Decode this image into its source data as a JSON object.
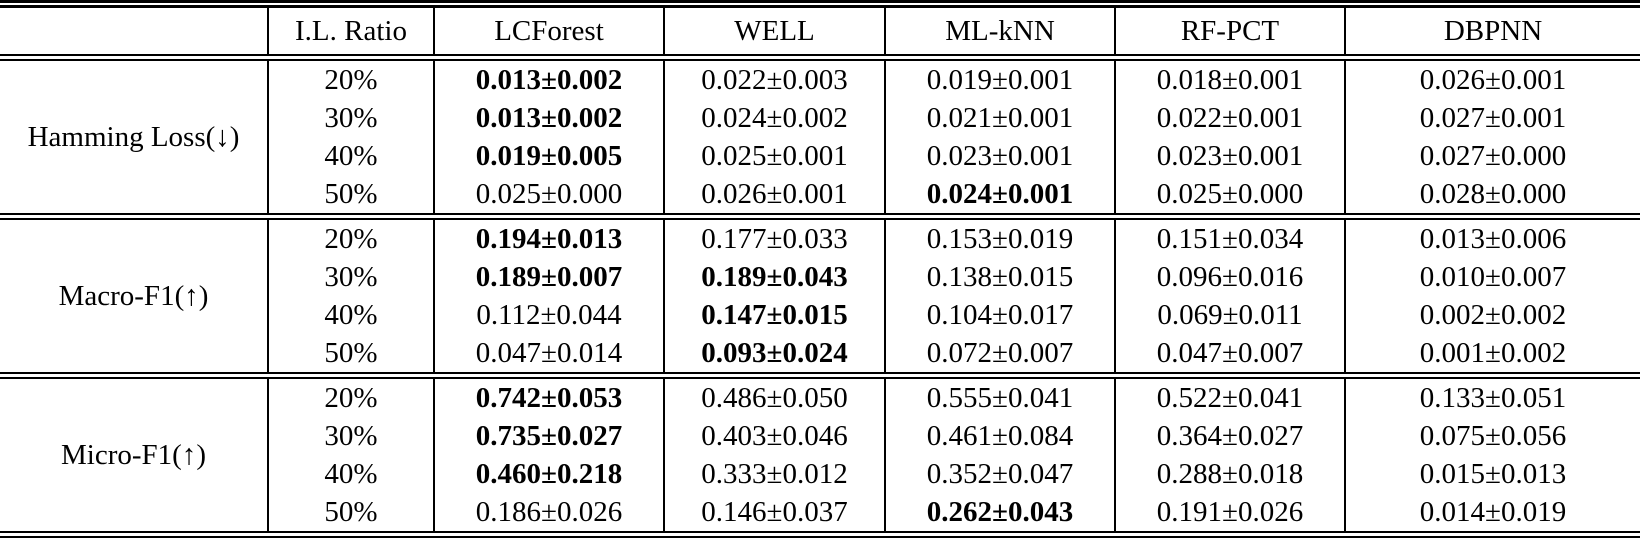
{
  "page": {
    "background": "#ffffff",
    "text_color": "#000000"
  },
  "table": {
    "header": [
      "",
      "I.L. Ratio",
      "LCForest",
      "WELL",
      "ML-kNN",
      "RF-PCT",
      "DBPNN"
    ],
    "groups": [
      {
        "metric": "Hamming Loss(↓)",
        "rows": [
          {
            "ratio": "20%",
            "values": [
              "0.013±0.002",
              "0.022±0.003",
              "0.019±0.001",
              "0.018±0.001",
              "0.026±0.001"
            ],
            "bold": [
              true,
              false,
              false,
              false,
              false
            ]
          },
          {
            "ratio": "30%",
            "values": [
              "0.013±0.002",
              "0.024±0.002",
              "0.021±0.001",
              "0.022±0.001",
              "0.027±0.001"
            ],
            "bold": [
              true,
              false,
              false,
              false,
              false
            ]
          },
          {
            "ratio": "40%",
            "values": [
              "0.019±0.005",
              "0.025±0.001",
              "0.023±0.001",
              "0.023±0.001",
              "0.027±0.000"
            ],
            "bold": [
              true,
              false,
              false,
              false,
              false
            ]
          },
          {
            "ratio": "50%",
            "values": [
              "0.025±0.000",
              "0.026±0.001",
              "0.024±0.001",
              "0.025±0.000",
              "0.028±0.000"
            ],
            "bold": [
              false,
              false,
              true,
              false,
              false
            ]
          }
        ]
      },
      {
        "metric": "Macro-F1(↑)",
        "rows": [
          {
            "ratio": "20%",
            "values": [
              "0.194±0.013",
              "0.177±0.033",
              "0.153±0.019",
              "0.151±0.034",
              "0.013±0.006"
            ],
            "bold": [
              true,
              false,
              false,
              false,
              false
            ]
          },
          {
            "ratio": "30%",
            "values": [
              "0.189±0.007",
              "0.189±0.043",
              "0.138±0.015",
              "0.096±0.016",
              "0.010±0.007"
            ],
            "bold": [
              true,
              true,
              false,
              false,
              false
            ]
          },
          {
            "ratio": "40%",
            "values": [
              "0.112±0.044",
              "0.147±0.015",
              "0.104±0.017",
              "0.069±0.011",
              "0.002±0.002"
            ],
            "bold": [
              false,
              true,
              false,
              false,
              false
            ]
          },
          {
            "ratio": "50%",
            "values": [
              "0.047±0.014",
              "0.093±0.024",
              "0.072±0.007",
              "0.047±0.007",
              "0.001±0.002"
            ],
            "bold": [
              false,
              true,
              false,
              false,
              false
            ]
          }
        ]
      },
      {
        "metric": "Micro-F1(↑)",
        "rows": [
          {
            "ratio": "20%",
            "values": [
              "0.742±0.053",
              "0.486±0.050",
              "0.555±0.041",
              "0.522±0.041",
              "0.133±0.051"
            ],
            "bold": [
              true,
              false,
              false,
              false,
              false
            ]
          },
          {
            "ratio": "30%",
            "values": [
              "0.735±0.027",
              "0.403±0.046",
              "0.461±0.084",
              "0.364±0.027",
              "0.075±0.056"
            ],
            "bold": [
              true,
              false,
              false,
              false,
              false
            ]
          },
          {
            "ratio": "40%",
            "values": [
              "0.460±0.218",
              "0.333±0.012",
              "0.352±0.047",
              "0.288±0.018",
              "0.015±0.013"
            ],
            "bold": [
              true,
              false,
              false,
              false,
              false
            ]
          },
          {
            "ratio": "50%",
            "values": [
              "0.186±0.026",
              "0.146±0.037",
              "0.262±0.043",
              "0.191±0.026",
              "0.014±0.019"
            ],
            "bold": [
              false,
              false,
              true,
              false,
              false
            ]
          }
        ]
      }
    ]
  }
}
